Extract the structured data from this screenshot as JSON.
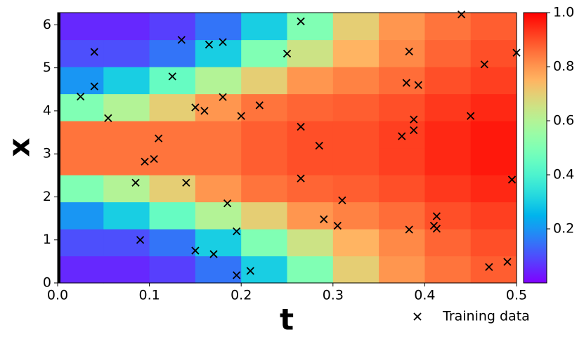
{
  "chart_data": {
    "type": "heatmap",
    "xlabel": "t",
    "ylabel": "x",
    "xlim": [
      0,
      0.5
    ],
    "ylim": [
      0,
      6.283
    ],
    "xticks": [
      {
        "value": 0,
        "label": "0.0"
      },
      0.1,
      0.2,
      0.3,
      0.4,
      0.5
    ],
    "yticks": [
      0,
      1,
      2,
      3,
      4,
      5,
      6
    ],
    "colormap": "rainbow",
    "clim": [
      0,
      1
    ],
    "colorbar_ticks": [
      0.2,
      0.4,
      0.6,
      0.8,
      {
        "value": 1,
        "label": "1.0"
      }
    ],
    "z": [
      [
        0.05,
        0.05,
        0.08,
        0.15,
        0.3,
        0.5,
        0.7,
        0.8,
        0.85,
        0.88
      ],
      [
        0.1,
        0.1,
        0.15,
        0.3,
        0.5,
        0.65,
        0.75,
        0.82,
        0.87,
        0.9
      ],
      [
        0.2,
        0.3,
        0.45,
        0.6,
        0.7,
        0.8,
        0.83,
        0.86,
        0.9,
        0.92
      ],
      [
        0.5,
        0.6,
        0.7,
        0.8,
        0.85,
        0.87,
        0.88,
        0.9,
        0.93,
        0.95
      ],
      [
        0.85,
        0.85,
        0.85,
        0.85,
        0.88,
        0.9,
        0.9,
        0.92,
        0.95,
        0.97
      ],
      [
        0.85,
        0.85,
        0.85,
        0.85,
        0.88,
        0.9,
        0.9,
        0.92,
        0.95,
        0.97
      ],
      [
        0.5,
        0.6,
        0.7,
        0.8,
        0.85,
        0.87,
        0.88,
        0.9,
        0.93,
        0.95
      ],
      [
        0.2,
        0.3,
        0.45,
        0.6,
        0.7,
        0.8,
        0.83,
        0.86,
        0.9,
        0.92
      ],
      [
        0.1,
        0.1,
        0.15,
        0.3,
        0.5,
        0.65,
        0.75,
        0.82,
        0.87,
        0.9
      ],
      [
        0.05,
        0.05,
        0.08,
        0.15,
        0.3,
        0.5,
        0.7,
        0.8,
        0.85,
        0.88
      ]
    ],
    "series": [
      {
        "name": "Training data",
        "type": "scatter",
        "color": "#000000",
        "x": [
          0.025,
          0.04,
          0.04,
          0.055,
          0.085,
          0.09,
          0.095,
          0.105,
          0.11,
          0.125,
          0.135,
          0.14,
          0.15,
          0.15,
          0.16,
          0.165,
          0.17,
          0.18,
          0.18,
          0.185,
          0.195,
          0.195,
          0.2,
          0.21,
          0.22,
          0.25,
          0.265,
          0.265,
          0.265,
          0.285,
          0.29,
          0.305,
          0.31,
          0.375,
          0.38,
          0.383,
          0.383,
          0.388,
          0.388,
          0.393,
          0.41,
          0.413,
          0.413,
          0.44,
          0.45,
          0.465,
          0.47,
          0.49,
          0.495,
          0.5
        ],
        "y": [
          4.33,
          5.37,
          4.57,
          3.83,
          2.33,
          1.0,
          2.82,
          2.88,
          3.36,
          4.8,
          5.65,
          2.33,
          4.08,
          0.75,
          4.0,
          5.54,
          0.67,
          5.6,
          4.32,
          1.85,
          1.2,
          0.18,
          3.88,
          0.28,
          4.13,
          5.33,
          6.08,
          3.63,
          2.43,
          3.19,
          1.48,
          1.33,
          1.92,
          3.41,
          4.65,
          5.38,
          1.24,
          3.8,
          3.55,
          4.6,
          1.33,
          1.55,
          1.26,
          6.24,
          3.88,
          5.08,
          0.37,
          0.49,
          2.4,
          5.35
        ]
      }
    ],
    "legend": "lower right"
  }
}
